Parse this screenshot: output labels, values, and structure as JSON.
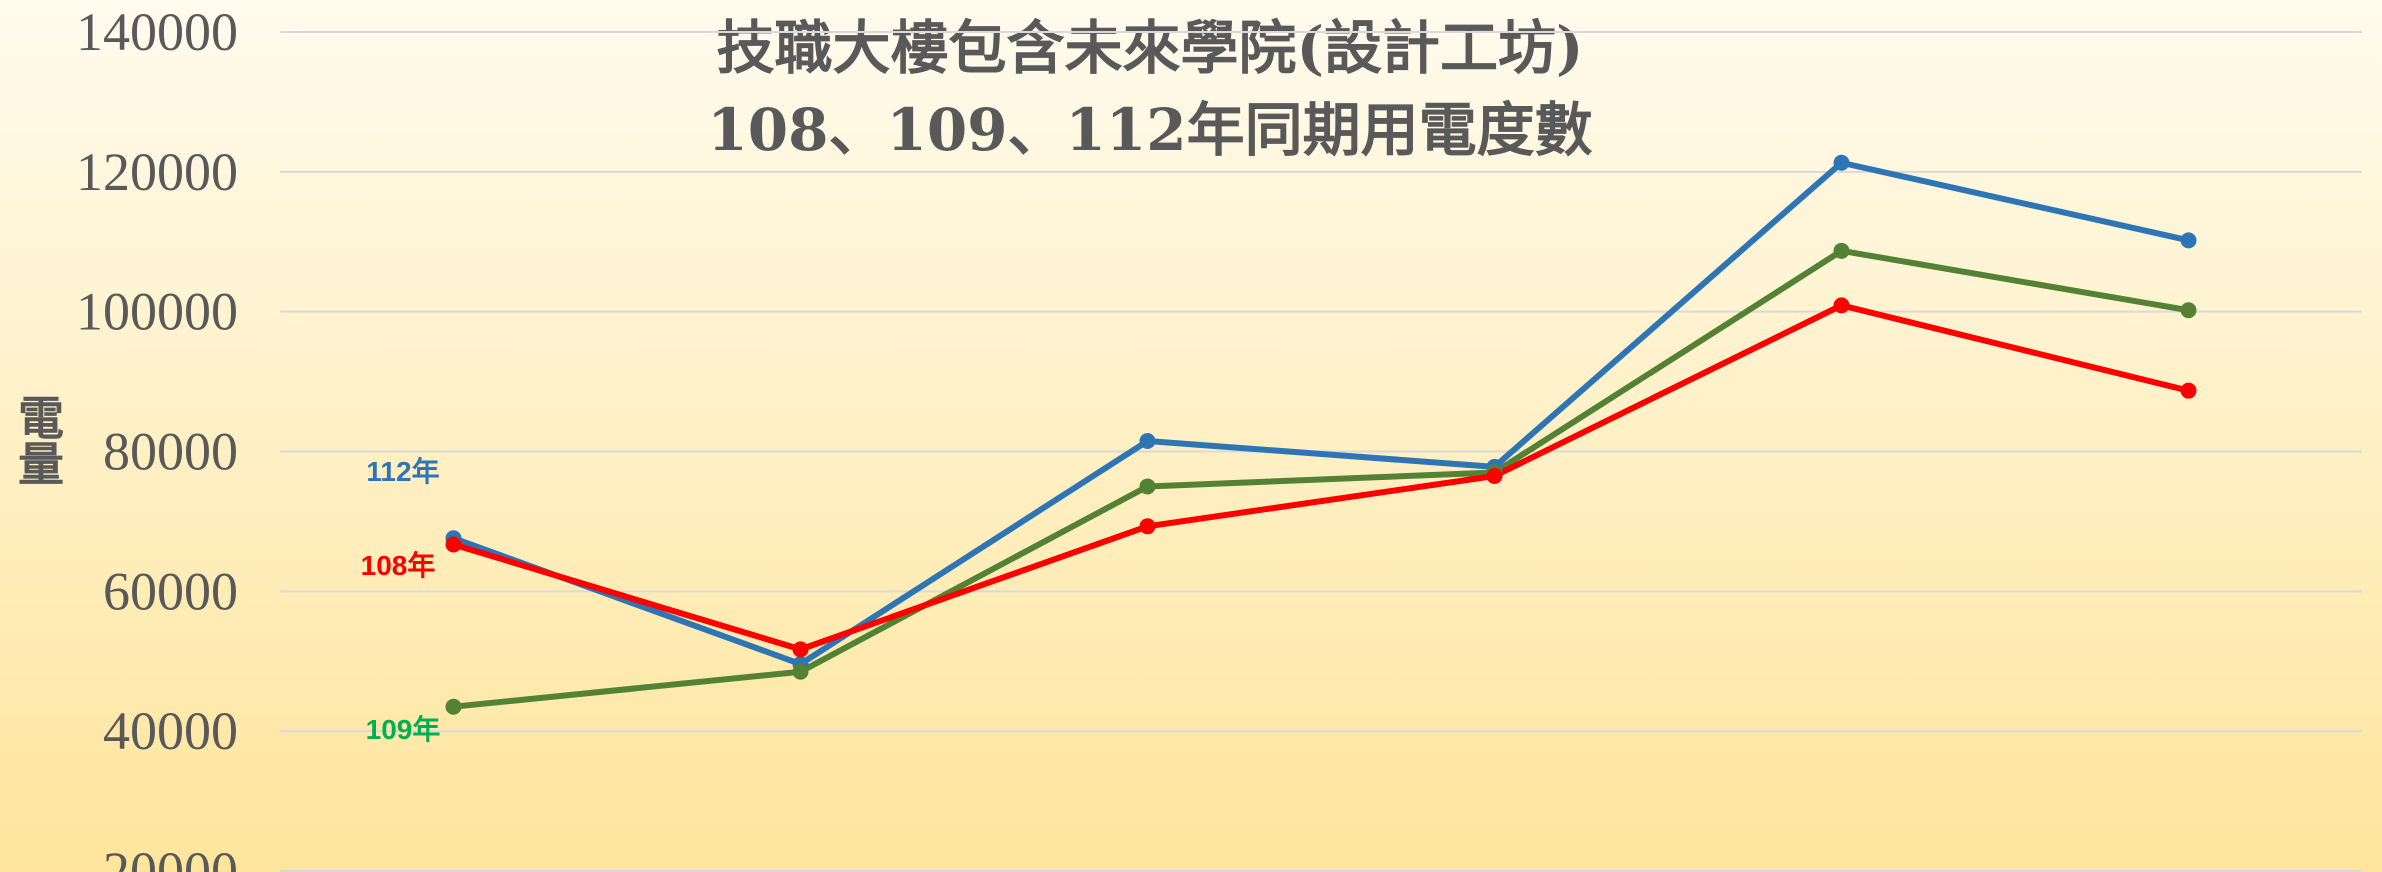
{
  "chart_data": {
    "type": "line",
    "title": [
      "技職大樓包含未來學院(設計工坊)",
      "108、109、112年同期用電度數"
    ],
    "y_label": "電量",
    "categories": [
      null,
      null,
      null,
      null,
      null,
      null
    ],
    "series": [
      {
        "name": "112年",
        "color": "#2e75b6",
        "label_color": "#2e75b6",
        "values": [
          67600,
          49600,
          81500,
          77800,
          121300,
          110200
        ]
      },
      {
        "name": "109年",
        "color": "#548235",
        "label_color": "#00b050",
        "values": [
          43500,
          48500,
          75000,
          77000,
          108700,
          100200
        ]
      },
      {
        "name": "108年",
        "color": "#ff0000",
        "label_color": "#ff0000",
        "values": [
          66700,
          51700,
          69300,
          76500,
          100900,
          88700
        ]
      }
    ],
    "ylim": [
      20000,
      140000
    ],
    "yticks": [
      20000,
      40000,
      60000,
      80000,
      100000,
      120000,
      140000
    ],
    "grid": true
  }
}
